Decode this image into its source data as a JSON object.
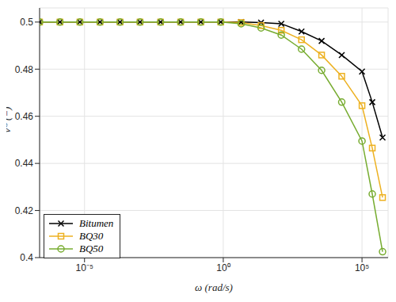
{
  "chart_data": {
    "type": "line",
    "x_label": "ω (rad/s)",
    "y_label": "ν* (−)",
    "log": "x",
    "grid": true,
    "legend": "lower left",
    "x": [
      2.4e-07,
      1.3e-06,
      6.8e-06,
      3.6e-05,
      0.00019,
      0.001,
      0.0055,
      0.029,
      0.155,
      0.81,
      4.4,
      23,
      123,
      660,
      3500,
      18600,
      100000,
      234000,
      550000
    ],
    "xlim": [
      2.4e-07,
      870000
    ],
    "xticks": [
      {
        "value": 1e-05,
        "label": "10⁻⁵"
      },
      {
        "value": 1,
        "label": "10⁰"
      },
      {
        "value": 100000,
        "label": "10⁵"
      }
    ],
    "ylim": [
      0.4,
      0.506
    ],
    "yticks": [
      0.4,
      0.42,
      0.44,
      0.46,
      0.48,
      0.5
    ],
    "series": [
      {
        "name": "Bitumen",
        "color": "#000000",
        "marker": "x",
        "values": [
          0.5,
          0.5,
          0.5,
          0.5,
          0.5,
          0.5,
          0.5,
          0.5,
          0.5,
          0.5,
          0.5,
          0.4998,
          0.4993,
          0.496,
          0.492,
          0.486,
          0.479,
          0.466,
          0.451
        ]
      },
      {
        "name": "BQ30",
        "color": "#EDB120",
        "marker": "square",
        "values": [
          0.5,
          0.5,
          0.5,
          0.5,
          0.5,
          0.5,
          0.5,
          0.5,
          0.5,
          0.5,
          0.4998,
          0.4985,
          0.4965,
          0.4925,
          0.486,
          0.477,
          0.4645,
          0.4465,
          0.4255
        ]
      },
      {
        "name": "BQ50",
        "color": "#77AC30",
        "marker": "circle",
        "values": [
          0.5,
          0.5,
          0.5,
          0.5,
          0.5,
          0.5,
          0.5,
          0.5,
          0.5,
          0.5,
          0.4993,
          0.4975,
          0.4945,
          0.4885,
          0.4795,
          0.466,
          0.4495,
          0.427,
          0.4025
        ]
      }
    ]
  }
}
